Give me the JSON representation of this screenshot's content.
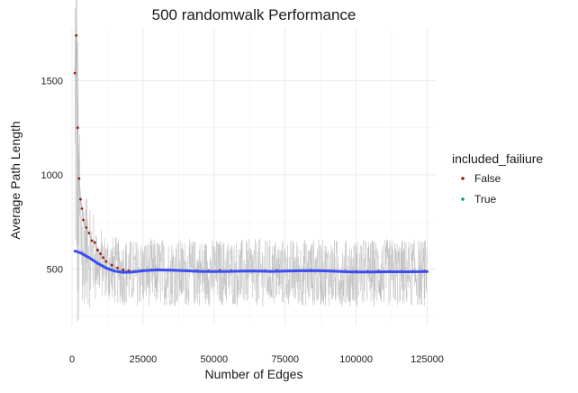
{
  "chart_data": {
    "type": "scatter",
    "title": "500   randomwalk  Performance",
    "xlabel": "Number of Edges",
    "ylabel": "Average Path Length",
    "xlim": [
      0,
      128000
    ],
    "ylim": [
      200,
      1780
    ],
    "x_ticks": [
      0,
      25000,
      50000,
      75000,
      100000,
      125000
    ],
    "x_tick_labels": [
      "0",
      "25000",
      "50000",
      "75000",
      "100000",
      "125000"
    ],
    "y_ticks": [
      500,
      1000,
      1500
    ],
    "y_tick_labels": [
      "500",
      "1000",
      "1500"
    ],
    "grid": true,
    "legend": {
      "title": "included_failiure",
      "position": "right",
      "entries": [
        {
          "label": "False",
          "color": "#9b1c14"
        },
        {
          "label": "True",
          "color": "#00a087"
        }
      ]
    },
    "series": [
      {
        "name": "False",
        "color": "#9b1c14",
        "line_color": "#b4b4b4",
        "x": [
          1000,
          1500,
          2000,
          2500,
          3000,
          3500,
          4000,
          5000,
          6000,
          7000,
          8000,
          9000,
          10000,
          11000,
          12000,
          14000,
          16000,
          18000,
          20000,
          22000,
          25000,
          28000,
          30000,
          33000,
          36000,
          40000,
          44000,
          48000,
          52000,
          56000,
          60000,
          64000,
          68000,
          72000,
          76000,
          80000,
          84000,
          88000,
          92000,
          96000,
          100000,
          104000,
          108000,
          112000,
          116000,
          120000,
          124000
        ],
        "y": [
          1540,
          1740,
          1250,
          980,
          870,
          820,
          760,
          720,
          690,
          650,
          640,
          600,
          580,
          560,
          540,
          520,
          505,
          495,
          490,
          488,
          492,
          495,
          497,
          495,
          494,
          492,
          490,
          491,
          492,
          490,
          489,
          490,
          491,
          492,
          490,
          491,
          493,
          490,
          489,
          488,
          487,
          488,
          489,
          488,
          487,
          488,
          489
        ]
      },
      {
        "name": "True",
        "color": "#00a087",
        "x": [],
        "y": []
      }
    ],
    "trend": {
      "color": "#3b4cf0",
      "x": [
        1000,
        3000,
        6000,
        9000,
        12000,
        15000,
        18000,
        21000,
        25000,
        30000,
        35000,
        40000,
        45000,
        50000,
        55000,
        60000,
        65000,
        70000,
        75000,
        80000,
        85000,
        90000,
        95000,
        100000,
        105000,
        110000,
        115000,
        120000,
        125000
      ],
      "y": [
        595,
        585,
        560,
        530,
        505,
        488,
        482,
        483,
        490,
        495,
        493,
        490,
        487,
        486,
        487,
        488,
        488,
        487,
        488,
        490,
        491,
        489,
        486,
        484,
        484,
        485,
        485,
        485,
        486
      ]
    }
  }
}
